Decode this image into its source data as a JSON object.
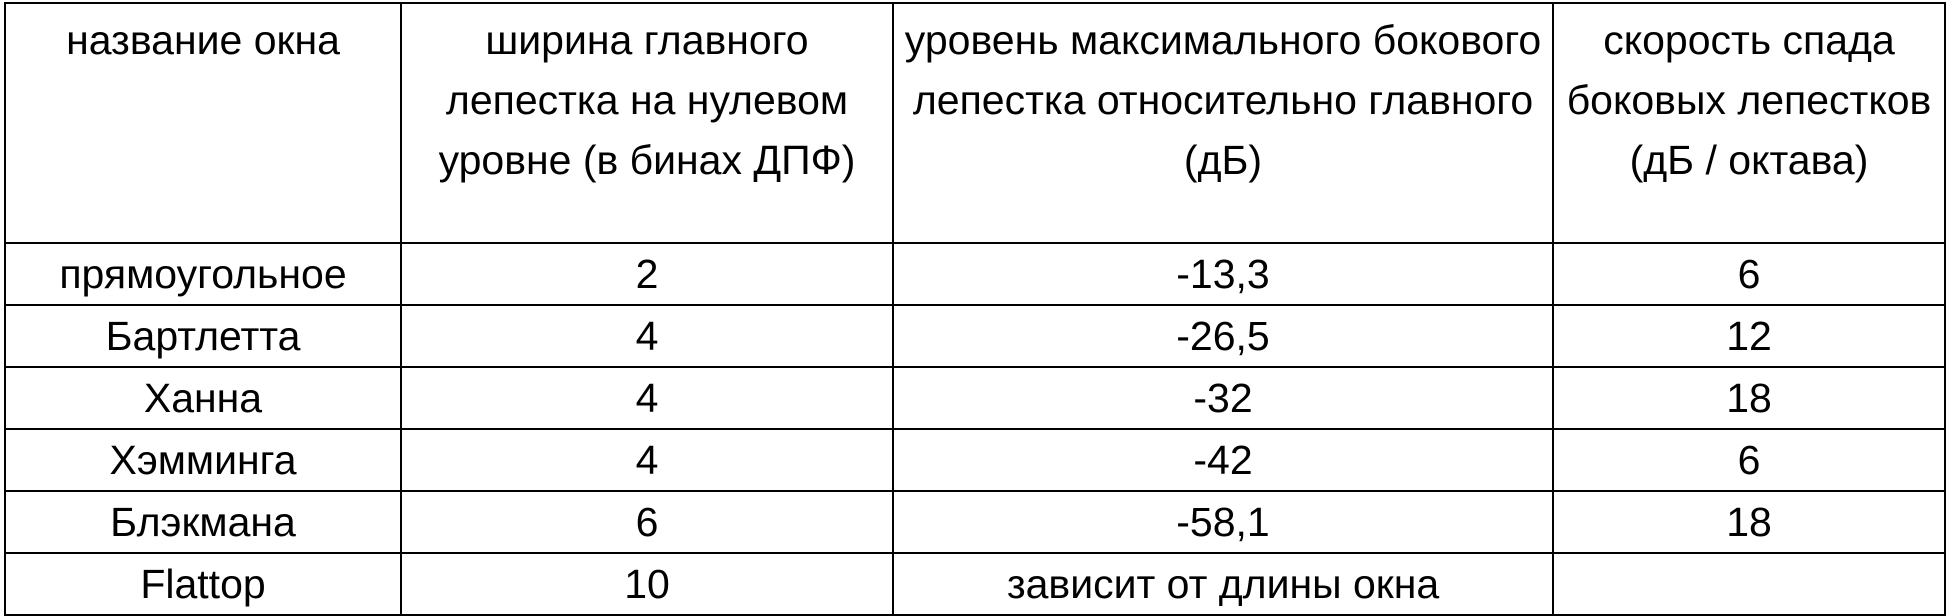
{
  "table": {
    "headers": [
      "название окна",
      "ширина главного лепестка на нулевом уровне (в бинах ДПФ)",
      "уровень максимального бокового лепестка относительно главного (дБ)",
      "скорость спада боковых лепестков (дБ / октава)"
    ],
    "rows": [
      [
        "прямоугольное",
        "2",
        "-13,3",
        "6"
      ],
      [
        "Бартлетта",
        "4",
        "-26,5",
        "12"
      ],
      [
        "Ханна",
        "4",
        "-32",
        "18"
      ],
      [
        "Хэмминга",
        "4",
        "-42",
        "6"
      ],
      [
        "Блэкмана",
        "6",
        "-58,1",
        "18"
      ],
      [
        "Flattop",
        "10",
        "зависит от длины окна",
        ""
      ]
    ]
  }
}
